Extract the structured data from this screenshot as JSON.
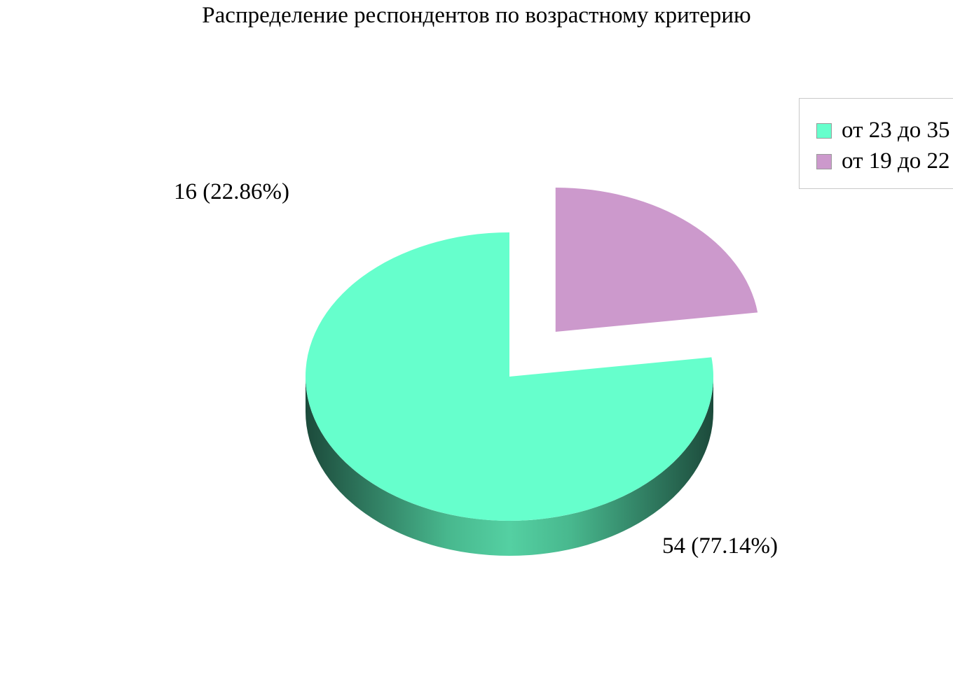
{
  "chart_data": {
    "type": "pie",
    "title": "Распределение респондентов по возрастному критерию",
    "categories": [
      "от 23 до 35",
      "от 19 до 22"
    ],
    "values": [
      54,
      16
    ],
    "percentages": [
      77.14,
      22.86
    ],
    "data_labels": [
      "54 (77.14%)",
      "16 (22.86%)"
    ],
    "colors": [
      "#66ffcc",
      "#cc99cc"
    ],
    "exploded": [
      false,
      true
    ],
    "legend_position": "top-right",
    "style": "3d"
  }
}
